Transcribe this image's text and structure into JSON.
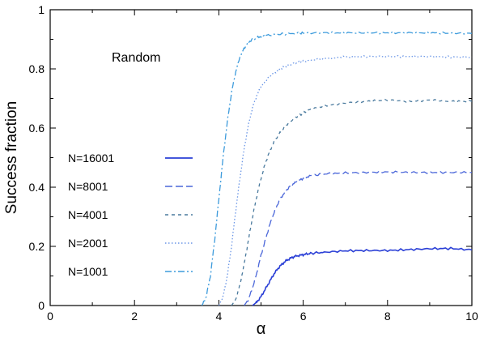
{
  "chart_data": {
    "type": "line",
    "title": "",
    "annotation": "Random",
    "xlabel": "α",
    "ylabel": "Success fraction",
    "xlim": [
      0,
      10
    ],
    "ylim": [
      0,
      1
    ],
    "xticks": [
      0,
      2,
      4,
      6,
      8,
      10
    ],
    "yticks": [
      0,
      0.2,
      0.4,
      0.6,
      0.8,
      1
    ],
    "xtick_labels": [
      "0",
      "2",
      "4",
      "6",
      "8",
      "10"
    ],
    "ytick_labels": [
      "0",
      "0.2",
      "0.4",
      "0.6",
      "0.8",
      "1"
    ],
    "grid": false,
    "legend_position": "left",
    "series": [
      {
        "name": "N=16001",
        "style": "solid",
        "color": "#2a3fd6",
        "x": [
          4.8,
          4.9,
          5.0,
          5.1,
          5.2,
          5.3,
          5.4,
          5.5,
          5.6,
          5.7,
          5.8,
          6.0,
          6.2,
          6.5,
          7.0,
          7.5,
          8.0,
          8.5,
          9.0,
          9.5,
          10.0
        ],
        "y": [
          0.0,
          0.012,
          0.03,
          0.055,
          0.08,
          0.105,
          0.125,
          0.14,
          0.152,
          0.16,
          0.166,
          0.172,
          0.177,
          0.18,
          0.185,
          0.186,
          0.186,
          0.189,
          0.192,
          0.193,
          0.188
        ]
      },
      {
        "name": "N=8001",
        "style": "dash",
        "color": "#4a66d9",
        "x": [
          4.6,
          4.7,
          4.8,
          4.9,
          5.0,
          5.1,
          5.2,
          5.3,
          5.4,
          5.5,
          5.6,
          5.7,
          5.8,
          6.0,
          6.2,
          6.5,
          7.0,
          7.5,
          8.0,
          8.5,
          9.0,
          9.5,
          10.0
        ],
        "y": [
          0.0,
          0.02,
          0.06,
          0.11,
          0.17,
          0.22,
          0.27,
          0.31,
          0.345,
          0.37,
          0.39,
          0.405,
          0.415,
          0.43,
          0.44,
          0.445,
          0.448,
          0.45,
          0.452,
          0.45,
          0.45,
          0.45,
          0.45
        ]
      },
      {
        "name": "N=4001",
        "style": "shortdash",
        "color": "#4a7a9e",
        "x": [
          4.3,
          4.4,
          4.5,
          4.6,
          4.7,
          4.8,
          4.9,
          5.0,
          5.1,
          5.2,
          5.3,
          5.4,
          5.6,
          5.8,
          6.0,
          6.2,
          6.5,
          7.0,
          7.5,
          8.0,
          8.5,
          9.0,
          9.5,
          10.0
        ],
        "y": [
          0.0,
          0.02,
          0.07,
          0.14,
          0.22,
          0.3,
          0.37,
          0.43,
          0.48,
          0.52,
          0.55,
          0.575,
          0.61,
          0.635,
          0.65,
          0.665,
          0.675,
          0.685,
          0.69,
          0.695,
          0.69,
          0.695,
          0.69,
          0.69
        ]
      },
      {
        "name": "N=2001",
        "style": "dot",
        "color": "#6b96e6",
        "x": [
          4.0,
          4.1,
          4.2,
          4.3,
          4.4,
          4.5,
          4.6,
          4.7,
          4.8,
          4.9,
          5.0,
          5.2,
          5.4,
          5.6,
          5.8,
          6.0,
          6.3,
          6.6,
          7.0,
          7.5,
          8.0,
          8.5,
          9.0,
          9.5,
          10.0
        ],
        "y": [
          0.0,
          0.03,
          0.1,
          0.2,
          0.32,
          0.43,
          0.53,
          0.61,
          0.67,
          0.71,
          0.74,
          0.775,
          0.795,
          0.81,
          0.82,
          0.825,
          0.832,
          0.836,
          0.84,
          0.842,
          0.842,
          0.842,
          0.842,
          0.84,
          0.84
        ]
      },
      {
        "name": "N=1001",
        "style": "dashdot",
        "color": "#3d9bdc",
        "x": [
          3.6,
          3.7,
          3.8,
          3.9,
          4.0,
          4.1,
          4.2,
          4.3,
          4.4,
          4.5,
          4.6,
          4.7,
          4.8,
          5.0,
          5.2,
          5.5,
          5.8,
          6.0,
          6.5,
          7.0,
          7.5,
          8.0,
          8.5,
          9.0,
          9.5,
          10.0
        ],
        "y": [
          0.0,
          0.03,
          0.1,
          0.22,
          0.36,
          0.5,
          0.62,
          0.72,
          0.79,
          0.84,
          0.87,
          0.89,
          0.9,
          0.91,
          0.915,
          0.918,
          0.92,
          0.921,
          0.922,
          0.922,
          0.922,
          0.922,
          0.922,
          0.922,
          0.921,
          0.92
        ]
      }
    ]
  }
}
